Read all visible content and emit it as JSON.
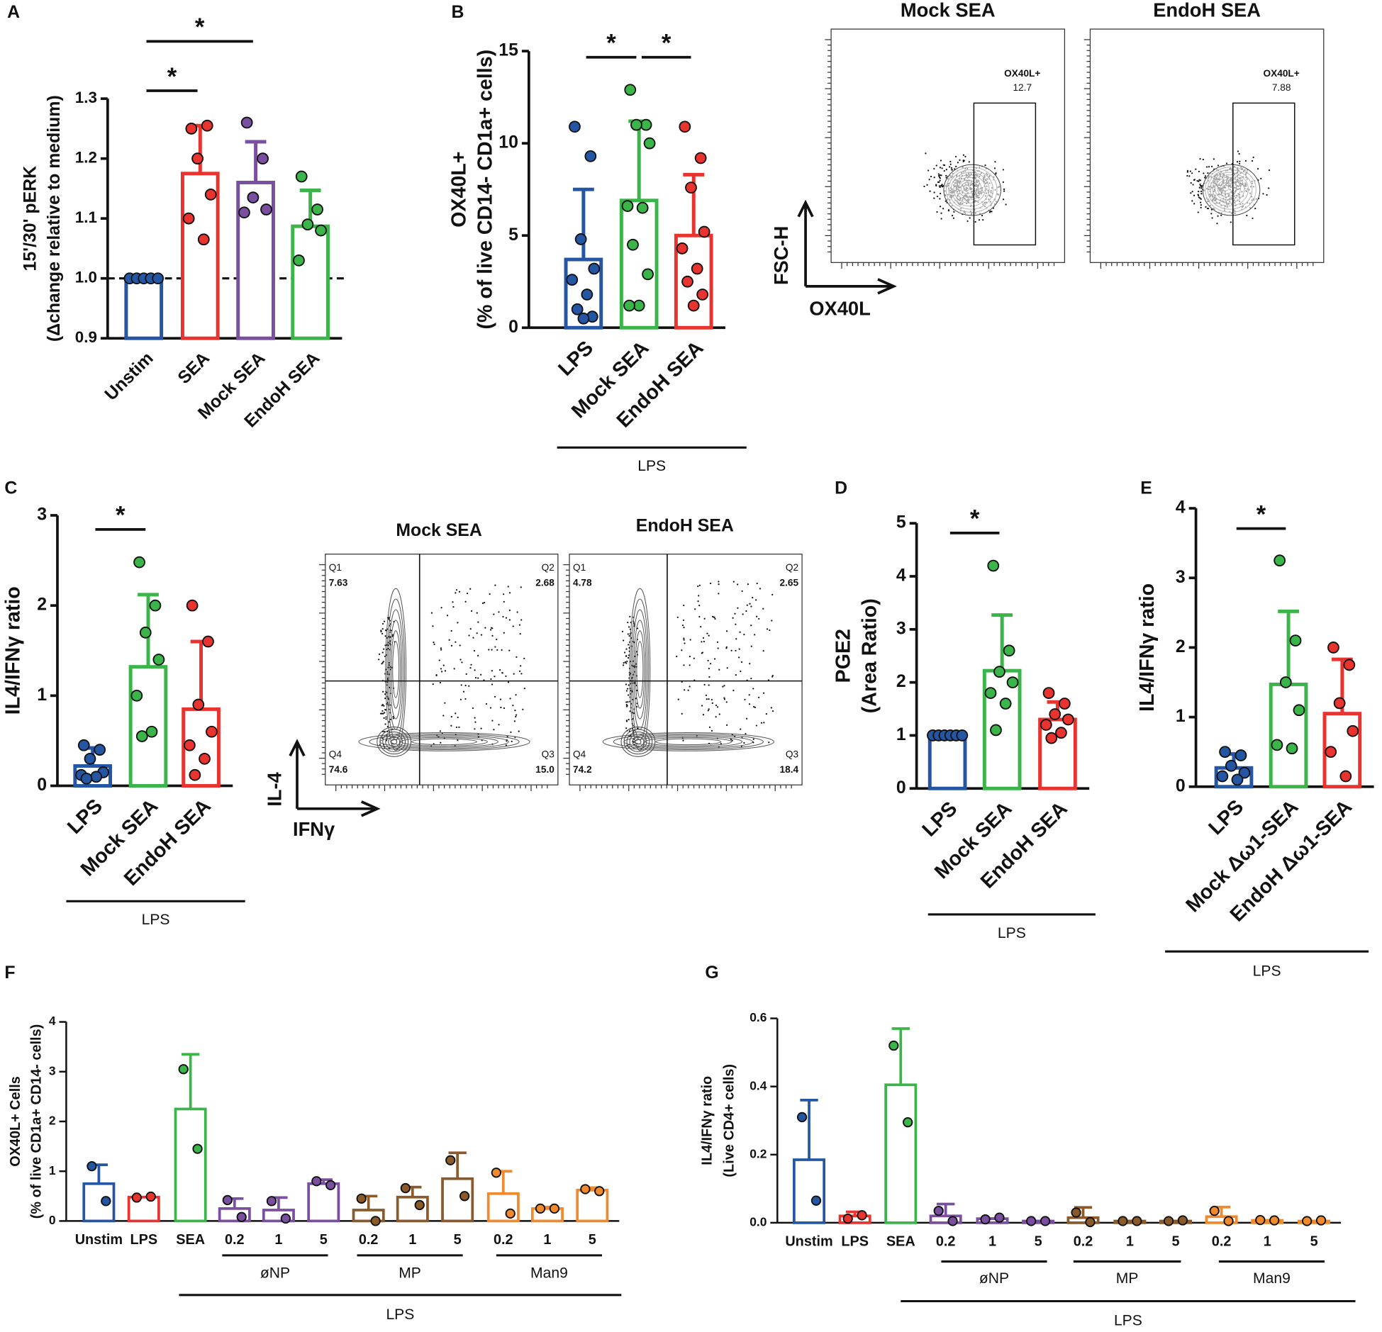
{
  "chart_data": [
    {
      "type": "bar",
      "panel": "A",
      "ylabel": [
        "15'/30' pERK",
        "(Δchange relative to medium)"
      ],
      "categories": [
        "Unstim",
        "SEA",
        "Mock SEA",
        "EndoH SEA"
      ],
      "colors": [
        "#2456a4",
        "#e8332f",
        "#7a4fa0",
        "#3bb54a"
      ],
      "values": [
        1.0,
        1.175,
        1.16,
        1.087
      ],
      "errors": [
        0,
        0.08,
        0.068,
        0.06
      ],
      "points": [
        [
          1,
          1,
          1,
          1,
          1
        ],
        [
          1.25,
          1.255,
          1.2,
          1.14,
          1.1,
          1.065
        ],
        [
          1.26,
          1.2,
          1.135,
          1.115,
          1.11
        ],
        [
          1.17,
          1.115,
          1.09,
          1.08,
          1.03
        ]
      ],
      "ylim": [
        0.9,
        1.3
      ],
      "yticks": [
        0.9,
        {
          "value": 1,
          "label": "1.0"
        },
        1.1,
        1.2,
        1.3
      ],
      "hline": 1,
      "significance": [
        {
          "from": 0,
          "to": 1,
          "label": "*"
        },
        {
          "from": 0,
          "to": 2,
          "label": "*"
        }
      ],
      "groups": []
    },
    {
      "type": "bar",
      "panel": "B",
      "ylabel": [
        "OX40L+",
        "(% of live CD14- CD1a+ cells)"
      ],
      "categories": [
        "LPS",
        "Mock SEA",
        "EndoH SEA"
      ],
      "colors": [
        "#2456a4",
        "#3bb54a",
        "#e8332f"
      ],
      "values": [
        3.7,
        6.9,
        5.0
      ],
      "errors": [
        3.8,
        4.3,
        3.3
      ],
      "points": [
        [
          10.9,
          9.3,
          4.8,
          3.2,
          2.6,
          1.8,
          1.0,
          0.6,
          0.5
        ],
        [
          12.9,
          11.0,
          11.0,
          10.0,
          6.6,
          6.5,
          4.5,
          2.9,
          1.2,
          1.2
        ],
        [
          10.9,
          9.2,
          7.6,
          5.2,
          4.3,
          3.2,
          2.5,
          1.8,
          1.2
        ]
      ],
      "ylim": [
        0,
        15
      ],
      "yticks": [
        0,
        5,
        10,
        15
      ],
      "significance": [
        {
          "from": 0,
          "to": 1,
          "label": "*"
        },
        {
          "from": 1,
          "to": 2,
          "label": "*"
        }
      ],
      "groups": [
        {
          "label": "LPS",
          "from": 0,
          "to": 2
        }
      ]
    },
    {
      "type": "bar",
      "panel": "C",
      "ylabel": [
        "IL4/IFNγ ratio"
      ],
      "categories": [
        "LPS",
        "Mock SEA",
        "EndoH SEA"
      ],
      "colors": [
        "#2456a4",
        "#3bb54a",
        "#e8332f"
      ],
      "values": [
        0.22,
        1.32,
        0.85
      ],
      "errors": [
        0.2,
        0.8,
        0.75
      ],
      "points": [
        [
          0.45,
          0.4,
          0.3,
          0.15,
          0.12,
          0.1,
          0.08
        ],
        [
          2.48,
          2.0,
          1.7,
          1.4,
          1.0,
          0.6,
          0.55
        ],
        [
          2.0,
          1.6,
          0.9,
          0.6,
          0.45,
          0.3,
          0.12
        ]
      ],
      "ylim": [
        0,
        3
      ],
      "yticks": [
        0,
        1,
        2,
        3
      ],
      "significance": [
        {
          "from": 0,
          "to": 1,
          "label": "*"
        }
      ],
      "groups": [
        {
          "label": "LPS",
          "from": 0,
          "to": 2
        }
      ]
    },
    {
      "type": "bar",
      "panel": "D",
      "ylabel": [
        "PGE2",
        "(Area Ratio)"
      ],
      "categories": [
        "LPS",
        "Mock SEA",
        "EndoH SEA"
      ],
      "colors": [
        "#2456a4",
        "#3bb54a",
        "#e8332f"
      ],
      "values": [
        1.0,
        2.22,
        1.3
      ],
      "errors": [
        0,
        1.05,
        0.33
      ],
      "points": [
        [
          1,
          1,
          1,
          1,
          1,
          1
        ],
        [
          4.2,
          2.6,
          2.2,
          2.0,
          1.8,
          1.6,
          1.1
        ],
        [
          1.8,
          1.6,
          1.4,
          1.3,
          1.2,
          1.05,
          0.95
        ]
      ],
      "ylim": [
        0,
        5
      ],
      "yticks": [
        0,
        1,
        2,
        3,
        4,
        5
      ],
      "significance": [
        {
          "from": 0,
          "to": 1,
          "label": "*"
        }
      ],
      "groups": [
        {
          "label": "LPS",
          "from": 0,
          "to": 2
        }
      ]
    },
    {
      "type": "bar",
      "panel": "E",
      "ylabel": [
        "IL4/IFNγ ratio"
      ],
      "categories": [
        "LPS",
        "Mock Δω1-SEA",
        "EndoH Δω1-SEA"
      ],
      "colors": [
        "#2456a4",
        "#3bb54a",
        "#e8332f"
      ],
      "values": [
        0.27,
        1.47,
        1.05
      ],
      "errors": [
        0.2,
        1.05,
        0.78
      ],
      "points": [
        [
          0.5,
          0.45,
          0.3,
          0.2,
          0.15,
          0.1
        ],
        [
          3.25,
          2.1,
          1.5,
          1.1,
          0.6,
          0.55
        ],
        [
          2.0,
          1.75,
          1.2,
          0.8,
          0.5,
          0.15
        ]
      ],
      "ylim": [
        0,
        4
      ],
      "yticks": [
        0,
        1,
        2,
        3,
        4
      ],
      "significance": [
        {
          "from": 0,
          "to": 1,
          "label": "*"
        }
      ],
      "groups": [
        {
          "label": "LPS",
          "from": 0,
          "to": 2
        }
      ]
    },
    {
      "type": "bar",
      "panel": "F",
      "ylabel": [
        "OX40L+ Cells",
        "(% of live CD1a+ CD14- cells)"
      ],
      "categories": [
        "Unstim",
        "LPS",
        "SEA",
        "0.2",
        "1",
        "5",
        "0.2",
        "1",
        "5",
        "0.2",
        "1",
        "5"
      ],
      "colors": [
        "#2456a4",
        "#e8332f",
        "#3bb54a",
        "#7a4fa0",
        "#7a4fa0",
        "#7a4fa0",
        "#8b5a2b",
        "#8b5a2b",
        "#8b5a2b",
        "#f08a2c",
        "#f08a2c",
        "#f08a2c"
      ],
      "values": [
        0.75,
        0.48,
        2.25,
        0.25,
        0.22,
        0.75,
        0.22,
        0.48,
        0.85,
        0.55,
        0.25,
        0.62
      ],
      "errors": [
        0.38,
        0,
        1.1,
        0.2,
        0.25,
        0.08,
        0.28,
        0.2,
        0.52,
        0.45,
        0.03,
        0.05
      ],
      "points": [
        [
          1.1,
          0.4
        ],
        [
          0.47,
          0.49
        ],
        [
          3.05,
          1.45
        ],
        [
          0.42,
          0.08
        ],
        [
          0.4,
          0.05
        ],
        [
          0.8,
          0.72
        ],
        [
          0.45,
          0.0
        ],
        [
          0.66,
          0.32
        ],
        [
          1.22,
          0.5
        ],
        [
          0.97,
          0.15
        ],
        [
          0.25,
          0.25
        ],
        [
          0.64,
          0.6
        ]
      ],
      "ylim": [
        0,
        4
      ],
      "yticks": [
        0,
        1,
        2,
        3,
        4
      ],
      "significance": [],
      "groups": [
        {
          "label": "øNP",
          "from": 3,
          "to": 5
        },
        {
          "label": "MP",
          "from": 6,
          "to": 8
        },
        {
          "label": "Man9",
          "from": 9,
          "to": 11
        },
        {
          "label": "LPS",
          "from": 2,
          "to": 11
        }
      ]
    },
    {
      "type": "bar",
      "panel": "G",
      "ylabel": [
        "IL4/IFNγ ratio",
        "(Live CD4+ cells)"
      ],
      "categories": [
        "Unstim",
        "LPS",
        "SEA",
        "0.2",
        "1",
        "5",
        "0.2",
        "1",
        "5",
        "0.2",
        "1",
        "5"
      ],
      "colors": [
        "#2456a4",
        "#e8332f",
        "#3bb54a",
        "#7a4fa0",
        "#7a4fa0",
        "#7a4fa0",
        "#8b5a2b",
        "#8b5a2b",
        "#8b5a2b",
        "#f08a2c",
        "#f08a2c",
        "#f08a2c"
      ],
      "values": [
        0.185,
        0.02,
        0.405,
        0.02,
        0.012,
        0.005,
        0.015,
        0.005,
        0.005,
        0.018,
        0.007,
        0.005
      ],
      "errors": [
        0.175,
        0.012,
        0.165,
        0.035,
        0,
        0,
        0.03,
        0,
        0,
        0.028,
        0,
        0
      ],
      "points": [
        [
          0.31,
          0.065
        ],
        [
          0.012,
          0.022
        ],
        [
          0.52,
          0.295
        ],
        [
          0.035,
          0.005
        ],
        [
          0.01,
          0.015
        ],
        [
          0.005,
          0.005
        ],
        [
          0.03,
          0.002
        ],
        [
          0.005,
          0.005
        ],
        [
          0.005,
          0.007
        ],
        [
          0.035,
          0.005
        ],
        [
          0.008,
          0.007
        ],
        [
          0.005,
          0.007
        ]
      ],
      "ylim": [
        0,
        0.6
      ],
      "yticks": [
        {
          "value": 0,
          "label": "0.0"
        },
        0.2,
        0.4,
        0.6
      ],
      "significance": [],
      "groups": [
        {
          "label": "øNP",
          "from": 3,
          "to": 5
        },
        {
          "label": "MP",
          "from": 6,
          "to": 8
        },
        {
          "label": "Man9",
          "from": 9,
          "to": 11
        },
        {
          "label": "LPS",
          "from": 2,
          "to": 11
        }
      ]
    }
  ],
  "flow_panels": [
    {
      "y_label": "FSC-H",
      "x_label": "OX40L",
      "plots": [
        {
          "title": "Mock SEA",
          "gate": [
            "OX40L+",
            "12.7"
          ]
        },
        {
          "title": "EndoH SEA",
          "gate": [
            "OX40L+",
            "7.88"
          ]
        }
      ]
    },
    {
      "y_label": "IL-4",
      "x_label": "IFNγ",
      "plots": [
        {
          "title": "Mock SEA",
          "quadrants": [
            [
              "Q1",
              "7.63"
            ],
            [
              "Q2",
              "2.68"
            ],
            [
              "Q3",
              "15.0"
            ],
            [
              "Q4",
              "74.6"
            ]
          ]
        },
        {
          "title": "EndoH SEA",
          "quadrants": [
            [
              "Q1",
              "4.78"
            ],
            [
              "Q2",
              "2.65"
            ],
            [
              "Q3",
              "18.4"
            ],
            [
              "Q4",
              "74.2"
            ]
          ]
        }
      ]
    }
  ]
}
